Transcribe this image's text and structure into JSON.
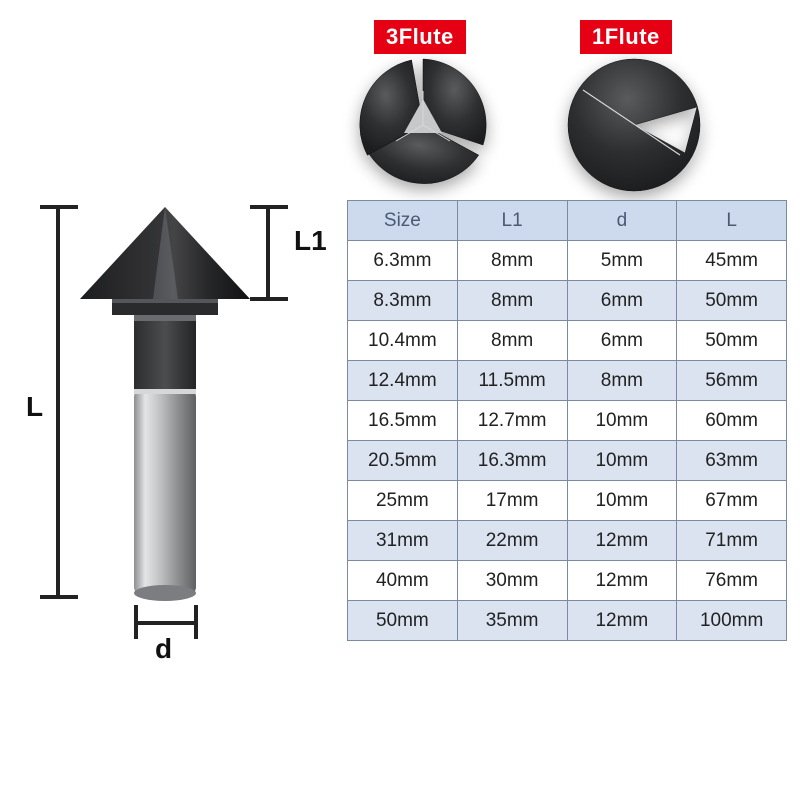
{
  "colors": {
    "badge_bg": "#e60013",
    "badge_text": "#ffffff",
    "table_border": "#7a8aa0",
    "table_header_bg": "#cdd9ec",
    "table_header_text": "#4a5a74",
    "row_odd_bg": "#ffffff",
    "row_even_bg": "#dbe3f0",
    "drill_dark": "#2a2b2d",
    "drill_mid": "#4d4e50",
    "shank_light": "#cfd1d3",
    "shank_mid": "#9ea0a3",
    "shank_dark": "#6f7174",
    "line": "#222222"
  },
  "badges": {
    "three": "3Flute",
    "one": "1Flute"
  },
  "dim_labels": {
    "L": "L",
    "L1": "L1",
    "d": "d"
  },
  "table": {
    "columns": [
      "Size",
      "L1",
      "d",
      "L"
    ],
    "rows": [
      [
        "6.3mm",
        "8mm",
        "5mm",
        "45mm"
      ],
      [
        "8.3mm",
        "8mm",
        "6mm",
        "50mm"
      ],
      [
        "10.4mm",
        "8mm",
        "6mm",
        "50mm"
      ],
      [
        "12.4mm",
        "11.5mm",
        "8mm",
        "56mm"
      ],
      [
        "16.5mm",
        "12.7mm",
        "10mm",
        "60mm"
      ],
      [
        "20.5mm",
        "16.3mm",
        "10mm",
        "63mm"
      ],
      [
        "25mm",
        "17mm",
        "10mm",
        "67mm"
      ],
      [
        "31mm",
        "22mm",
        "12mm",
        "71mm"
      ],
      [
        "40mm",
        "30mm",
        "12mm",
        "76mm"
      ],
      [
        "50mm",
        "35mm",
        "12mm",
        "100mm"
      ]
    ]
  }
}
